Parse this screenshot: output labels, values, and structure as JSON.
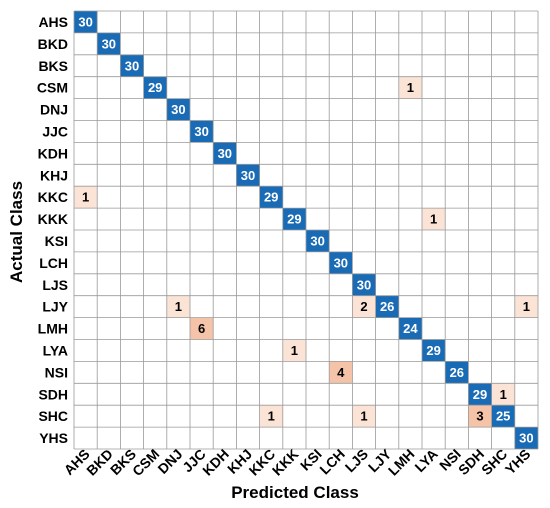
{
  "chart_data": {
    "type": "heatmap",
    "title": "",
    "xlabel": "Predicted Class",
    "ylabel": "Actual Class",
    "classes": [
      "AHS",
      "BKD",
      "BKS",
      "CSM",
      "DNJ",
      "JJC",
      "KDH",
      "KHJ",
      "KKC",
      "KKK",
      "KSI",
      "LCH",
      "LJS",
      "LJY",
      "LMH",
      "LYA",
      "NSI",
      "SDH",
      "SHC",
      "YHS"
    ],
    "cells": [
      [
        0,
        0,
        30
      ],
      [
        1,
        1,
        30
      ],
      [
        2,
        2,
        30
      ],
      [
        3,
        3,
        29
      ],
      [
        3,
        14,
        1
      ],
      [
        4,
        4,
        30
      ],
      [
        5,
        5,
        30
      ],
      [
        6,
        6,
        30
      ],
      [
        7,
        7,
        30
      ],
      [
        8,
        0,
        1
      ],
      [
        8,
        8,
        29
      ],
      [
        9,
        9,
        29
      ],
      [
        9,
        15,
        1
      ],
      [
        10,
        10,
        30
      ],
      [
        11,
        11,
        30
      ],
      [
        12,
        12,
        30
      ],
      [
        13,
        4,
        1
      ],
      [
        13,
        12,
        2
      ],
      [
        13,
        13,
        26
      ],
      [
        13,
        19,
        1
      ],
      [
        14,
        5,
        6
      ],
      [
        14,
        14,
        24
      ],
      [
        15,
        9,
        1
      ],
      [
        15,
        15,
        29
      ],
      [
        16,
        11,
        4
      ],
      [
        16,
        16,
        26
      ],
      [
        17,
        17,
        29
      ],
      [
        17,
        18,
        1
      ],
      [
        18,
        8,
        1
      ],
      [
        18,
        12,
        1
      ],
      [
        18,
        17,
        3
      ],
      [
        18,
        18,
        25
      ],
      [
        19,
        19,
        30
      ]
    ],
    "grid": true,
    "colors": {
      "diagonal": "#1a6bb5",
      "diagonal_text": "#ffffff",
      "misclass_light": "#fbe3d6",
      "misclass_medium": "#f4c3a8",
      "misclass_text": "#000000",
      "grid_line": "#9a9a9a"
    }
  }
}
